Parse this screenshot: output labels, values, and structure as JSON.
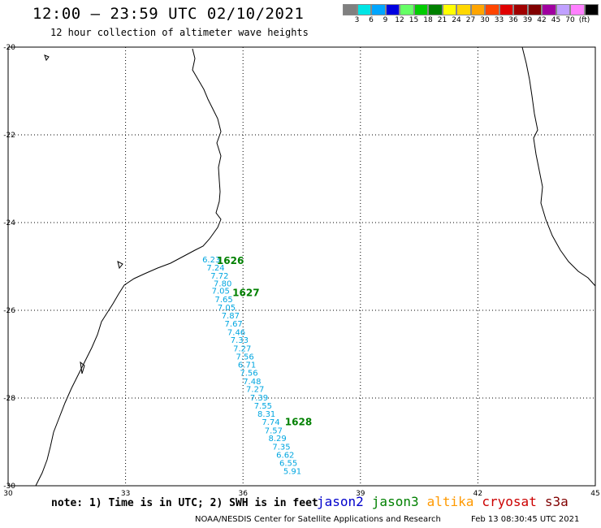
{
  "header": {
    "title": "12:00 – 23:59 UTC 02/10/2021",
    "subtitle": "12 hour collection of altimeter wave heights"
  },
  "colorbar": {
    "colors": [
      "#808080",
      "#00e5e5",
      "#00a6ff",
      "#0000e0",
      "#66ff66",
      "#00cc00",
      "#008000",
      "#ffff00",
      "#ffd700",
      "#ffa500",
      "#ff4500",
      "#e00000",
      "#a00000",
      "#800000",
      "#a000a0",
      "#c0a0ff",
      "#ff80ff",
      "#000000"
    ],
    "ticks": [
      "3",
      "6",
      "9",
      "12",
      "15",
      "18",
      "21",
      "24",
      "27",
      "30",
      "33",
      "36",
      "39",
      "42",
      "45",
      "70",
      "(ft)"
    ]
  },
  "map": {
    "lon_range": [
      30,
      45
    ],
    "lat_range": [
      -30,
      -20
    ],
    "lon_ticks": [
      "30",
      "33",
      "36",
      "39",
      "42",
      "45"
    ],
    "lat_ticks": [
      "-20",
      "-22",
      "-24",
      "-26",
      "-28",
      "-30"
    ],
    "grid": "dotted",
    "pass_labels": [
      {
        "text": "1626",
        "lon": 35.33,
        "lat": -24.87
      },
      {
        "text": "1627",
        "lon": 35.73,
        "lat": -25.6
      },
      {
        "text": "1628",
        "lon": 37.07,
        "lat": -28.55
      }
    ],
    "readings": [
      {
        "v": "6.23",
        "lon": 34.96,
        "lat": -24.83
      },
      {
        "v": "7.24",
        "lon": 35.07,
        "lat": -25.02
      },
      {
        "v": "7.72",
        "lon": 35.17,
        "lat": -25.2
      },
      {
        "v": "7.80",
        "lon": 35.25,
        "lat": -25.38
      },
      {
        "v": "7.05",
        "lon": 35.2,
        "lat": -25.55
      },
      {
        "v": "7.65",
        "lon": 35.28,
        "lat": -25.74
      },
      {
        "v": "7.05",
        "lon": 35.35,
        "lat": -25.93
      },
      {
        "v": "7.87",
        "lon": 35.45,
        "lat": -26.11
      },
      {
        "v": "7.67",
        "lon": 35.53,
        "lat": -26.3
      },
      {
        "v": "7.46",
        "lon": 35.6,
        "lat": -26.49
      },
      {
        "v": "7.33",
        "lon": 35.68,
        "lat": -26.67
      },
      {
        "v": "7.27",
        "lon": 35.75,
        "lat": -26.86
      },
      {
        "v": "7.56",
        "lon": 35.82,
        "lat": -27.05
      },
      {
        "v": "6.71",
        "lon": 35.87,
        "lat": -27.23
      },
      {
        "v": "7.56",
        "lon": 35.92,
        "lat": -27.42
      },
      {
        "v": "7.48",
        "lon": 36.0,
        "lat": -27.61
      },
      {
        "v": "7.27",
        "lon": 36.08,
        "lat": -27.79
      },
      {
        "v": "7.39",
        "lon": 36.18,
        "lat": -27.98
      },
      {
        "v": "7.55",
        "lon": 36.28,
        "lat": -28.17
      },
      {
        "v": "8.31",
        "lon": 36.37,
        "lat": -28.35
      },
      {
        "v": "7.74",
        "lon": 36.48,
        "lat": -28.54
      },
      {
        "v": "7.57",
        "lon": 36.55,
        "lat": -28.73
      },
      {
        "v": "8.29",
        "lon": 36.65,
        "lat": -28.91
      },
      {
        "v": "7.35",
        "lon": 36.75,
        "lat": -29.1
      },
      {
        "v": "6.62",
        "lon": 36.85,
        "lat": -29.29
      },
      {
        "v": "6.55",
        "lon": 36.93,
        "lat": -29.47
      },
      {
        "v": "5.91",
        "lon": 37.03,
        "lat": -29.66
      }
    ]
  },
  "note": "note: 1) Time is in UTC; 2) SWH is in feet",
  "missions": [
    {
      "name": "jason2",
      "color": "#0000cc"
    },
    {
      "name": "jason3",
      "color": "#008000"
    },
    {
      "name": "altika",
      "color": "#ff9900"
    },
    {
      "name": "cryosat",
      "color": "#cc0000"
    },
    {
      "name": "s3a",
      "color": "#800000"
    }
  ],
  "footer": {
    "org": "NOAA/NESDIS Center for Satellite Applications and Research",
    "date": "Feb 13 08:30:45 UTC 2021"
  },
  "colors": {
    "reading": "#00a6e0",
    "pass": "#008000",
    "coast": "#000000"
  }
}
